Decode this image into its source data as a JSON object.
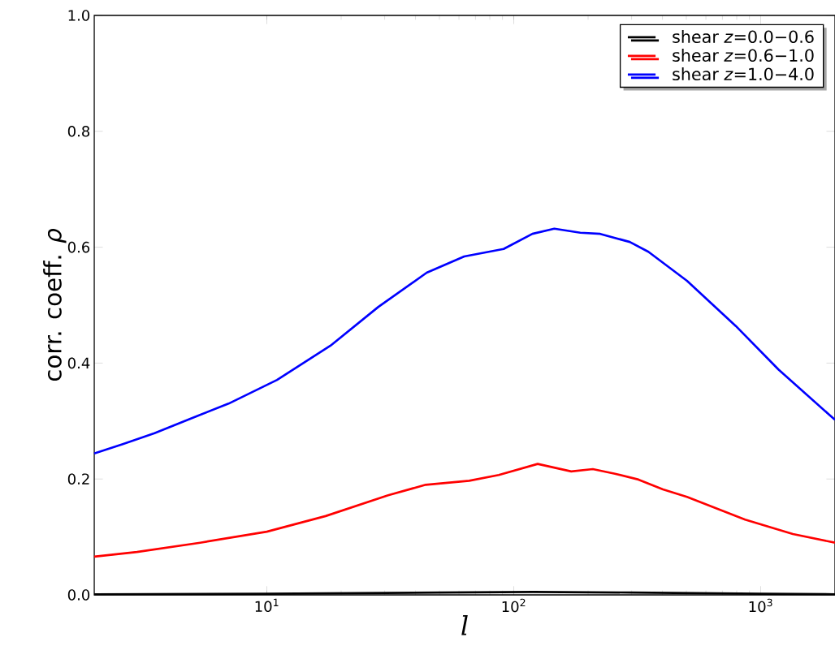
{
  "chart_data": {
    "type": "line",
    "xlabel": "l",
    "ylabel": "corr. coeff. *ρ*",
    "log": "x",
    "xlim": [
      2,
      2000
    ],
    "xticks": [
      {
        "value": 10,
        "label": "10$^{1}$"
      },
      {
        "value": 100,
        "label": "10$^{2}$"
      },
      {
        "value": 1000,
        "label": "10$^{3}$"
      }
    ],
    "ylim": [
      0,
      1
    ],
    "yticks": [
      {
        "value": 0,
        "label": "0.0"
      },
      {
        "value": 0.2,
        "label": "0.2"
      },
      {
        "value": 0.4,
        "label": "0.4"
      },
      {
        "value": 0.6,
        "label": "0.6"
      },
      {
        "value": 0.8,
        "label": "0.8"
      },
      {
        "value": 1,
        "label": "1.0"
      }
    ],
    "grid": false,
    "legend": "top right",
    "marker": "none",
    "line_style": "solid",
    "series": [
      {
        "name": "shear *z*=0.0−0.6",
        "color": "#000000",
        "x": [
          2,
          10,
          50,
          120,
          300,
          1000,
          2000
        ],
        "values": [
          0.001,
          0.002,
          0.004,
          0.005,
          0.004,
          0.002,
          0.001
        ]
      },
      {
        "name": "shear *z*=0.6−1.0",
        "color": "#ff0000",
        "x": [
          2,
          2.98,
          5.37,
          10,
          17.3,
          31,
          44,
          66,
          87,
          125,
          171,
          209,
          257,
          320,
          402,
          503,
          865,
          1350,
          2000
        ],
        "values": [
          0.066,
          0.074,
          0.09,
          0.109,
          0.136,
          0.172,
          0.19,
          0.197,
          0.207,
          0.226,
          0.213,
          0.217,
          0.209,
          0.199,
          0.182,
          0.169,
          0.13,
          0.105,
          0.09
        ]
      },
      {
        "name": "shear *z*=1.0−4.0",
        "color": "#0000ff",
        "x": [
          2,
          2.61,
          3.51,
          4.9,
          7.0,
          11.0,
          18.1,
          28.3,
          44.4,
          63,
          91,
          119,
          146,
          186,
          224,
          295,
          351,
          503,
          793,
          1180,
          2000
        ],
        "values": [
          0.244,
          0.26,
          0.279,
          0.304,
          0.33,
          0.371,
          0.43,
          0.497,
          0.556,
          0.584,
          0.597,
          0.623,
          0.632,
          0.625,
          0.623,
          0.609,
          0.592,
          0.542,
          0.464,
          0.389,
          0.302
        ]
      }
    ]
  }
}
